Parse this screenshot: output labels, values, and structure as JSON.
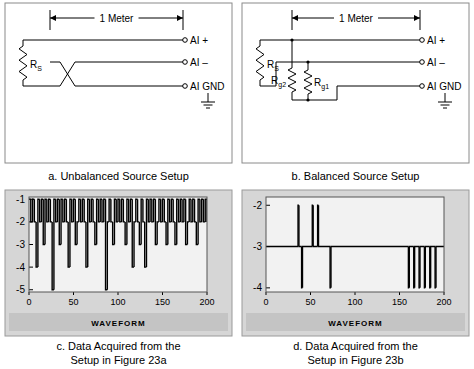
{
  "diagrams": [
    {
      "caption": "a. Unbalanced Source Setup",
      "dimension": "1 Meter",
      "source": {
        "label": "R",
        "subscript": "S"
      },
      "terminals": [
        "AI +",
        "AI –",
        "AI GND"
      ]
    },
    {
      "caption": "b. Balanced Source Setup",
      "dimension": "1 Meter",
      "source": {
        "label": "R",
        "subscript": "S"
      },
      "terminals": [
        "AI +",
        "AI –",
        "AI GND"
      ],
      "ground_resistors": [
        {
          "label": "R",
          "subscript": "g2"
        },
        {
          "label": "R",
          "subscript": "g1"
        }
      ]
    }
  ],
  "chart_data": [
    {
      "type": "line",
      "xlabel": "WAVEFORM",
      "caption": [
        "c. Data Acquired from the",
        "Setup in Figure 23a"
      ],
      "x": [
        0,
        2,
        4,
        6,
        8,
        10,
        12,
        14,
        16,
        18,
        20,
        22,
        24,
        26,
        28,
        30,
        32,
        34,
        36,
        38,
        40,
        42,
        44,
        46,
        48,
        50,
        52,
        54,
        56,
        58,
        60,
        62,
        64,
        66,
        68,
        70,
        72,
        74,
        76,
        78,
        80,
        82,
        84,
        86,
        88,
        90,
        92,
        94,
        96,
        98,
        100,
        102,
        104,
        106,
        108,
        110,
        112,
        114,
        116,
        118,
        120,
        122,
        124,
        126,
        128,
        130,
        132,
        134,
        136,
        138,
        140,
        142,
        144,
        146,
        148,
        150,
        152,
        154,
        156,
        158,
        160,
        162,
        164,
        166,
        168,
        170,
        172,
        174,
        176,
        178,
        180,
        182,
        184,
        186,
        188,
        190,
        192,
        194,
        196,
        198,
        200
      ],
      "series": [
        {
          "color": "#000000",
          "line_style": "step",
          "values": [
            -1,
            -2,
            -1,
            -2,
            -4,
            -1,
            -2,
            -1,
            -3,
            -1,
            -2,
            -1,
            -2,
            -5,
            -1,
            -2,
            -1,
            -3,
            -1,
            -2,
            -1,
            -2,
            -4,
            -1,
            -2,
            -1,
            -3,
            -2,
            -1,
            -2,
            -1,
            -2,
            -4,
            -1,
            -2,
            -1,
            -2,
            -3,
            -1,
            -2,
            -1,
            -2,
            -1,
            -5,
            -2,
            -1,
            -2,
            -3,
            -1,
            -2,
            -1,
            -2,
            -1,
            -2,
            -3,
            -1,
            -2,
            -1,
            -4,
            -2,
            -1,
            -2,
            -3,
            -1,
            -2,
            -4,
            -1,
            -2,
            -1,
            -2,
            -1,
            -3,
            -2,
            -1,
            -2,
            -1,
            -2,
            -3,
            -1,
            -2,
            -1,
            -2,
            -3,
            -1,
            -2,
            -1,
            -2,
            -1,
            -3,
            -2,
            -1,
            -2,
            -1,
            -2,
            -3,
            -1,
            -2,
            -1,
            -2,
            -1,
            -2
          ]
        }
      ],
      "xlim": [
        0,
        200
      ],
      "ylim": [
        -5.1,
        -0.9
      ],
      "xticks": [
        0,
        50,
        100,
        150,
        200
      ],
      "yticks": [
        -1,
        -2,
        -3,
        -4,
        -5
      ],
      "grid": false
    },
    {
      "type": "line",
      "xlabel": "WAVEFORM",
      "caption": [
        "d. Data Acquired from the",
        "Setup in Figure 23b"
      ],
      "x": [
        0,
        36,
        37,
        40,
        41,
        52,
        53,
        58,
        59,
        72,
        73,
        160,
        161,
        166,
        167,
        172,
        173,
        178,
        179,
        184,
        185,
        190,
        191,
        200
      ],
      "series": [
        {
          "color": "#000000",
          "line_style": "step",
          "values": [
            -3,
            -2,
            -3,
            -4,
            -3,
            -2,
            -3,
            -2,
            -3,
            -4,
            -3,
            -4,
            -3,
            -4,
            -3,
            -4,
            -3,
            -4,
            -3,
            -4,
            -3,
            -4,
            -3,
            -3
          ]
        }
      ],
      "xlim": [
        0,
        200
      ],
      "ylim": [
        -4.1,
        -1.8
      ],
      "xticks": [
        0,
        50,
        100,
        150,
        200
      ],
      "yticks": [
        -2,
        -3,
        -4
      ],
      "grid": false
    }
  ]
}
